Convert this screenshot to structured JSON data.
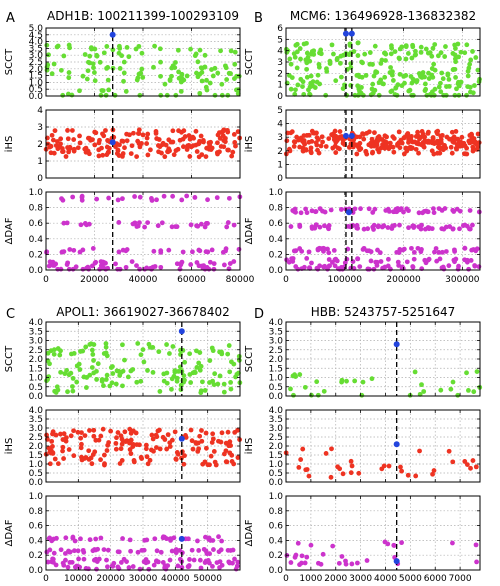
{
  "colors": {
    "scct": "#66dd33",
    "ihs": "#ee3322",
    "ddaf": "#cc33cc",
    "highlight": "#2244dd"
  },
  "chart_data": [
    {
      "letter": "A",
      "title": "ADH1B: 100211399-100293109",
      "type": "scatter",
      "xlim": [
        0,
        80000
      ],
      "xticks": [
        "0",
        "20000",
        "40000",
        "60000",
        "80000"
      ],
      "xtick_values": [
        0,
        20000,
        40000,
        60000,
        80000
      ],
      "marker_x": [
        27500
      ],
      "panels": [
        {
          "ylabel": "SCCT",
          "metric": "scct",
          "ylim": [
            0,
            5.0
          ],
          "yticks": [
            "0.0",
            "0.5",
            "1.0",
            "1.5",
            "2.0",
            "2.5",
            "3.0",
            "3.5",
            "4.0",
            "4.5",
            "5.0"
          ],
          "ytick_values": [
            0,
            0.5,
            1,
            1.5,
            2,
            2.5,
            3,
            3.5,
            4,
            4.5,
            5
          ],
          "levels": [
            3.3,
            2.1,
            1.3,
            0.2
          ],
          "n": 140,
          "highlight": [
            {
              "x": 27500,
              "y": 4.5
            }
          ]
        },
        {
          "ylabel": "iHS",
          "metric": "ihs",
          "ylim": [
            0,
            4
          ],
          "yticks": [
            "0",
            "1",
            "2",
            "3",
            "4"
          ],
          "ytick_values": [
            0,
            1,
            2,
            3,
            4
          ],
          "levels": [
            2.0,
            1.6,
            2.5
          ],
          "n": 190,
          "highlight": [
            {
              "x": 27500,
              "y": 2.1
            }
          ]
        },
        {
          "ylabel": "ΔDAF",
          "metric": "ddaf",
          "ylim": [
            0,
            1.0
          ],
          "yticks": [
            "0.0",
            "0.2",
            "0.4",
            "0.6",
            "0.8",
            "1.0"
          ],
          "ytick_values": [
            0,
            0.2,
            0.4,
            0.6,
            0.8,
            1
          ],
          "levels": [
            0.92,
            0.58,
            0.25,
            0.08,
            0.02
          ],
          "n": 150,
          "highlight": []
        }
      ]
    },
    {
      "letter": "B",
      "title": "MCM6: 136496928-136832382",
      "type": "scatter",
      "xlim": [
        0,
        330000
      ],
      "xticks": [
        "0",
        "100000",
        "200000",
        "300000"
      ],
      "xtick_values": [
        0,
        100000,
        200000,
        300000
      ],
      "marker_x": [
        102000,
        112000
      ],
      "panels": [
        {
          "ylabel": "SCCT",
          "metric": "scct",
          "ylim": [
            0,
            6
          ],
          "yticks": [
            "0",
            "1",
            "2",
            "3",
            "4",
            "5",
            "6"
          ],
          "ytick_values": [
            0,
            1,
            2,
            3,
            4,
            5,
            6
          ],
          "levels": [
            4.2,
            3.3,
            2.0,
            1.3,
            0.3
          ],
          "n": 260,
          "highlight": [
            {
              "x": 102000,
              "y": 5.5
            },
            {
              "x": 112000,
              "y": 5.5
            }
          ]
        },
        {
          "ylabel": "iHS",
          "metric": "ihs",
          "ylim": [
            0,
            5
          ],
          "yticks": [
            "0",
            "1",
            "2",
            "3",
            "4",
            "5"
          ],
          "ytick_values": [
            0,
            1,
            2,
            3,
            4,
            5
          ],
          "levels": [
            2.6,
            2.2,
            3.0
          ],
          "n": 280,
          "highlight": [
            {
              "x": 102000,
              "y": 3.1
            },
            {
              "x": 112000,
              "y": 3.1
            }
          ]
        },
        {
          "ylabel": "ΔDAF",
          "metric": "ddaf",
          "ylim": [
            0,
            1.0
          ],
          "yticks": [
            "0.0",
            "0.2",
            "0.4",
            "0.6",
            "0.8",
            "1.0"
          ],
          "ytick_values": [
            0,
            0.2,
            0.4,
            0.6,
            0.8,
            1
          ],
          "levels": [
            0.76,
            0.55,
            0.25,
            0.12,
            0.03
          ],
          "n": 250,
          "highlight": [
            {
              "x": 107000,
              "y": 0.74
            }
          ]
        }
      ]
    },
    {
      "letter": "C",
      "title": "APOL1: 36619027-36678402",
      "type": "scatter",
      "xlim": [
        0,
        60000
      ],
      "xticks": [
        "0",
        "10000",
        "20000",
        "30000",
        "40000",
        "50000"
      ],
      "xtick_values": [
        0,
        10000,
        20000,
        30000,
        40000,
        50000
      ],
      "marker_x": [
        42000
      ],
      "panels": [
        {
          "ylabel": "SCCT",
          "metric": "scct",
          "ylim": [
            0,
            4.0
          ],
          "yticks": [
            "0.0",
            "0.5",
            "1.0",
            "1.5",
            "2.0",
            "2.5",
            "3.0",
            "3.5",
            "4.0"
          ],
          "ytick_values": [
            0,
            0.5,
            1,
            1.5,
            2,
            2.5,
            3,
            3.5,
            4
          ],
          "levels": [
            2.5,
            1.6,
            1.0,
            0.5
          ],
          "n": 160,
          "highlight": [
            {
              "x": 42000,
              "y": 3.5
            }
          ]
        },
        {
          "ylabel": "iHS",
          "metric": "ihs",
          "ylim": [
            0,
            4.0
          ],
          "yticks": [
            "0.0",
            "0.5",
            "1.0",
            "1.5",
            "2.0",
            "2.5",
            "3.0",
            "3.5",
            "4.0"
          ],
          "ytick_values": [
            0,
            0.5,
            1,
            1.5,
            2,
            2.5,
            3,
            3.5,
            4
          ],
          "levels": [
            2.0,
            1.3,
            2.6
          ],
          "n": 170,
          "highlight": [
            {
              "x": 42000,
              "y": 2.4
            }
          ]
        },
        {
          "ylabel": "ΔDAF",
          "metric": "ddaf",
          "ylim": [
            0,
            1.0
          ],
          "yticks": [
            "0.0",
            "0.2",
            "0.4",
            "0.6",
            "0.8",
            "1.0"
          ],
          "ytick_values": [
            0,
            0.2,
            0.4,
            0.6,
            0.8,
            1
          ],
          "levels": [
            0.42,
            0.25,
            0.12,
            0.04
          ],
          "n": 160,
          "highlight": [
            {
              "x": 42000,
              "y": 0.42
            }
          ]
        }
      ]
    },
    {
      "letter": "D",
      "title": "HBB: 5243757-5251647",
      "type": "scatter",
      "xlim": [
        0,
        7800
      ],
      "xticks": [
        "0",
        "1000",
        "2000",
        "3000",
        "4000",
        "5000",
        "6000",
        "7000"
      ],
      "xtick_values": [
        0,
        1000,
        2000,
        3000,
        4000,
        5000,
        6000,
        7000
      ],
      "marker_x": [
        4450
      ],
      "panels": [
        {
          "ylabel": "SCCT",
          "metric": "scct",
          "ylim": [
            0,
            4.0
          ],
          "yticks": [
            "0.0",
            "0.5",
            "1.0",
            "1.5",
            "2.0",
            "2.5",
            "3.0",
            "3.5",
            "4.0"
          ],
          "ytick_values": [
            0,
            0.5,
            1,
            1.5,
            2,
            2.5,
            3,
            3.5,
            4
          ],
          "levels": [
            1.0,
            0.5,
            0.2
          ],
          "n": 32,
          "highlight": [
            {
              "x": 4450,
              "y": 2.8
            }
          ]
        },
        {
          "ylabel": "iHS",
          "metric": "ihs",
          "ylim": [
            0,
            4.0
          ],
          "yticks": [
            "0.0",
            "0.5",
            "1.0",
            "1.5",
            "2.0",
            "2.5",
            "3.0",
            "3.5",
            "4.0"
          ],
          "ytick_values": [
            0,
            0.5,
            1,
            1.5,
            2,
            2.5,
            3,
            3.5,
            4
          ],
          "levels": [
            1.0,
            0.5,
            1.5
          ],
          "n": 34,
          "highlight": [
            {
              "x": 4450,
              "y": 2.1
            }
          ]
        },
        {
          "ylabel": "ΔDAF",
          "metric": "ddaf",
          "ylim": [
            0,
            1.0
          ],
          "yticks": [
            "0.0",
            "0.2",
            "0.4",
            "0.6",
            "0.8",
            "1.0"
          ],
          "ytick_values": [
            0,
            0.2,
            0.4,
            0.6,
            0.8,
            1
          ],
          "levels": [
            0.35,
            0.2,
            0.1
          ],
          "n": 32,
          "highlight": [
            {
              "x": 4450,
              "y": 0.12
            }
          ]
        }
      ]
    }
  ]
}
